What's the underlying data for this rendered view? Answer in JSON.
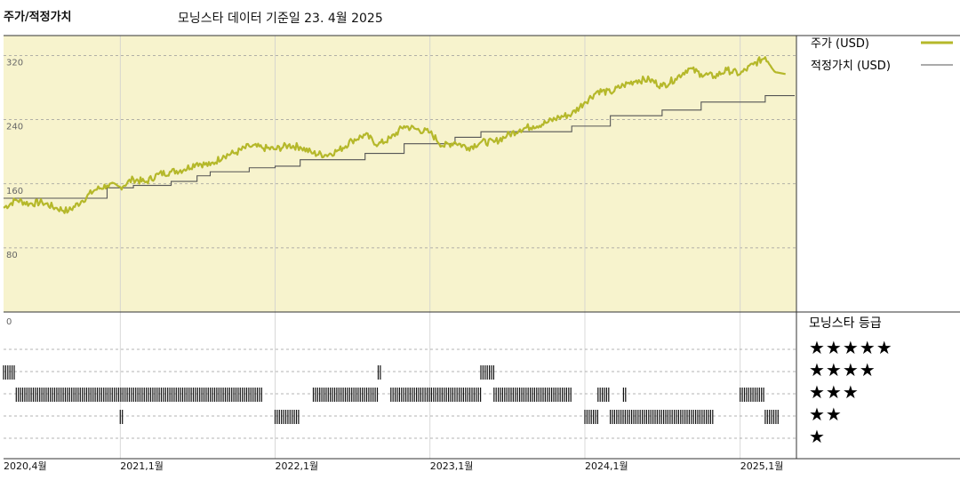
{
  "header": {
    "left_title": "주가/적정가치",
    "subtitle": "모닝스타 데이터 기준일 23. 4월 2025"
  },
  "legend": {
    "price_label": "주가 (USD)",
    "fair_label": "적정가치 (USD)",
    "rating_title": "모닝스타 등급",
    "stars": [
      "★★★★★",
      "★★★★",
      "★★★",
      "★★",
      "★"
    ]
  },
  "colors": {
    "price": "#b5b82a",
    "fair": "#555555",
    "panel_bg": "#f7f3cd",
    "grid": "#9a9a9a",
    "rating_bar": "#111111"
  },
  "chart_data": [
    {
      "type": "line",
      "xlabel": "",
      "ylabel": "",
      "ylim": [
        0,
        345
      ],
      "yticks": [
        "0",
        "80",
        "160",
        "240",
        "320"
      ],
      "xticks": [
        "2020,4월",
        "2021,1월",
        "2022,1월",
        "2023,1월",
        "2024,1월",
        "2025,1월"
      ],
      "grid": true,
      "legend_position": "right",
      "series": [
        {
          "name": "주가 (USD)",
          "x": [
            "2020-04",
            "2020-05",
            "2020-06",
            "2020-07",
            "2020-08",
            "2020-09",
            "2020-10",
            "2020-11",
            "2020-12",
            "2021-01",
            "2021-02",
            "2021-03",
            "2021-04",
            "2021-05",
            "2021-06",
            "2021-07",
            "2021-08",
            "2021-09",
            "2021-10",
            "2021-11",
            "2021-12",
            "2022-01",
            "2022-02",
            "2022-03",
            "2022-04",
            "2022-05",
            "2022-06",
            "2022-07",
            "2022-08",
            "2022-09",
            "2022-10",
            "2022-11",
            "2022-12",
            "2023-01",
            "2023-02",
            "2023-03",
            "2023-04",
            "2023-05",
            "2023-06",
            "2023-07",
            "2023-08",
            "2023-09",
            "2023-10",
            "2023-11",
            "2023-12",
            "2024-01",
            "2024-02",
            "2024-03",
            "2024-04",
            "2024-05",
            "2024-06",
            "2024-07",
            "2024-08",
            "2024-09",
            "2024-10",
            "2024-11",
            "2024-12",
            "2025-01",
            "2025-02",
            "2025-03",
            "2025-04"
          ],
          "values": [
            130,
            140,
            135,
            137,
            130,
            126,
            138,
            152,
            158,
            156,
            166,
            162,
            172,
            175,
            178,
            186,
            183,
            195,
            199,
            207,
            205,
            203,
            208,
            206,
            198,
            196,
            202,
            214,
            221,
            209,
            217,
            232,
            228,
            224,
            207,
            212,
            205,
            212,
            212,
            220,
            228,
            232,
            236,
            243,
            247,
            262,
            276,
            274,
            283,
            289,
            290,
            282,
            291,
            304,
            297,
            294,
            302,
            297,
            309,
            318,
            297
          ]
        },
        {
          "name": "적정가치 (USD)",
          "x": [
            "2020-04",
            "2020-11",
            "2020-12",
            "2021-02",
            "2021-05",
            "2021-07",
            "2021-08",
            "2021-11",
            "2022-01",
            "2022-03",
            "2022-08",
            "2022-11",
            "2023-03",
            "2023-05",
            "2023-09",
            "2023-12",
            "2024-03",
            "2024-07",
            "2024-10",
            "2025-03",
            "2025-04"
          ],
          "values": [
            142,
            142,
            155,
            158,
            163,
            170,
            175,
            180,
            182,
            190,
            198,
            210,
            218,
            225,
            225,
            232,
            245,
            252,
            262,
            270,
            270
          ]
        }
      ]
    },
    {
      "type": "heatmap",
      "title": "모닝스타 등급",
      "levels": [
        "★★★★★",
        "★★★★",
        "★★★",
        "★★",
        "★"
      ],
      "segments": [
        {
          "stars": 4,
          "start": "2020-04",
          "end": "2020-05"
        },
        {
          "stars": 3,
          "start": "2020-05",
          "end": "2021-12"
        },
        {
          "stars": 2,
          "start": "2021-01",
          "end": "2021-01"
        },
        {
          "stars": 2,
          "start": "2022-01",
          "end": "2022-03"
        },
        {
          "stars": 3,
          "start": "2022-04",
          "end": "2022-09"
        },
        {
          "stars": 4,
          "start": "2022-09",
          "end": "2022-09"
        },
        {
          "stars": 3,
          "start": "2022-10",
          "end": "2023-05"
        },
        {
          "stars": 4,
          "start": "2023-05",
          "end": "2023-06"
        },
        {
          "stars": 3,
          "start": "2023-06",
          "end": "2023-12"
        },
        {
          "stars": 2,
          "start": "2024-01",
          "end": "2024-02"
        },
        {
          "stars": 3,
          "start": "2024-02",
          "end": "2024-03"
        },
        {
          "stars": 3,
          "start": "2024-04",
          "end": "2024-04"
        },
        {
          "stars": 2,
          "start": "2024-03",
          "end": "2024-11"
        },
        {
          "stars": 3,
          "start": "2025-01",
          "end": "2025-03"
        },
        {
          "stars": 2,
          "start": "2025-03",
          "end": "2025-04"
        }
      ]
    }
  ]
}
